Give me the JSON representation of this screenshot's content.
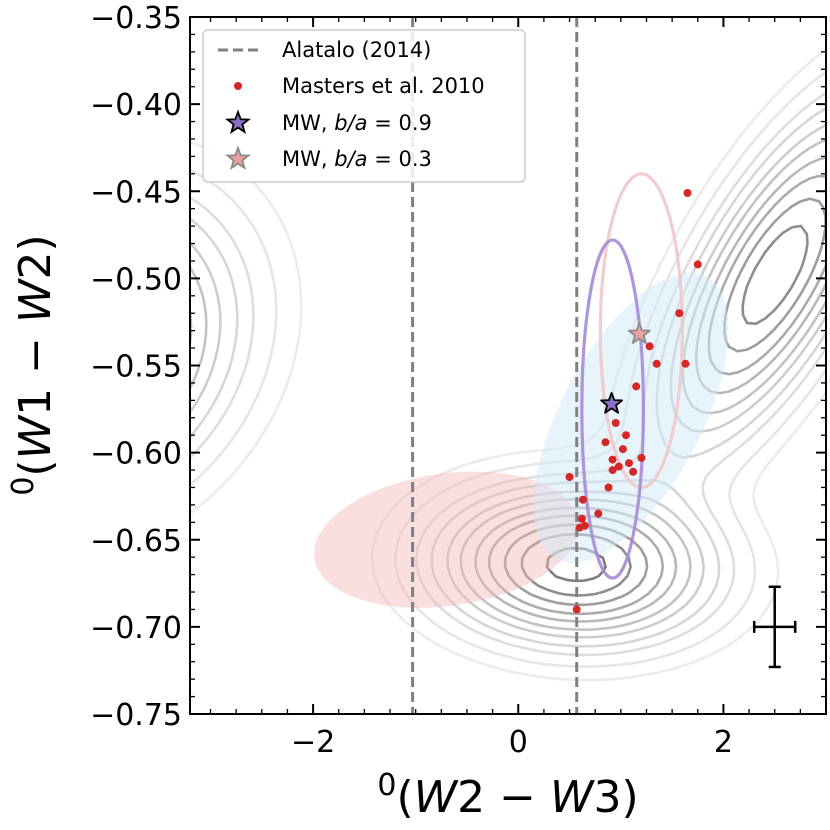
{
  "chart_data": {
    "type": "scatter",
    "title": "",
    "xlabel": "0(W2 − W3)",
    "xlabel_parts": {
      "sup": "0",
      "open": "(",
      "a": "W",
      "a_n": "2",
      "op": " − ",
      "b": "W",
      "b_n": "3",
      "close": ")"
    },
    "ylabel": "0(W1 − W2)",
    "ylabel_parts": {
      "sup": "0",
      "open": "(",
      "a": "W",
      "a_n": "1",
      "op": " − ",
      "b": "W",
      "b_n": "2",
      "close": ")"
    },
    "xlim": [
      -3.2,
      3.0
    ],
    "ylim": [
      -0.75,
      -0.35
    ],
    "xticks": [
      -2,
      0,
      2
    ],
    "xtick_labels": [
      "−2",
      "0",
      "2"
    ],
    "yticks": [
      -0.35,
      -0.4,
      -0.45,
      -0.5,
      -0.55,
      -0.6,
      -0.65,
      -0.7,
      -0.75
    ],
    "ytick_labels": [
      "−0.35",
      "−0.40",
      "−0.45",
      "−0.50",
      "−0.55",
      "−0.60",
      "−0.65",
      "−0.70",
      "−0.75"
    ],
    "vlines": [
      {
        "name": "Alatalo (2014)",
        "x": -1.03,
        "color": "#808080"
      },
      {
        "name": "Alatalo (2014)",
        "x": 0.57,
        "color": "#808080"
      }
    ],
    "legend": {
      "position": "top-left",
      "entries": [
        {
          "label": "Alatalo (2014)",
          "kind": "dashed-line",
          "color": "#808080"
        },
        {
          "label": "Masters et al. 2010",
          "kind": "dot",
          "color": "#d62728"
        },
        {
          "label_text": "MW, ",
          "label_var": "b/a",
          "label_value": " = 0.9",
          "kind": "star",
          "color": "#8a6fc4"
        },
        {
          "label_text": "MW, ",
          "label_var": "b/a",
          "label_value": " = 0.3",
          "kind": "star",
          "color": "#e8a0a0"
        }
      ]
    },
    "series": [
      {
        "name": "Masters et al. 2010",
        "color": "#d62728",
        "points": [
          [
            1.65,
            -0.451
          ],
          [
            1.75,
            -0.492
          ],
          [
            1.57,
            -0.52
          ],
          [
            1.28,
            -0.539
          ],
          [
            1.35,
            -0.549
          ],
          [
            1.63,
            -0.549
          ],
          [
            1.15,
            -0.562
          ],
          [
            0.95,
            -0.583
          ],
          [
            1.05,
            -0.59
          ],
          [
            0.85,
            -0.594
          ],
          [
            1.02,
            -0.598
          ],
          [
            1.2,
            -0.603
          ],
          [
            0.92,
            -0.604
          ],
          [
            1.08,
            -0.606
          ],
          [
            0.98,
            -0.608
          ],
          [
            1.12,
            -0.611
          ],
          [
            0.92,
            -0.61
          ],
          [
            0.5,
            -0.614
          ],
          [
            0.88,
            -0.62
          ],
          [
            0.63,
            -0.627
          ],
          [
            0.78,
            -0.635
          ],
          [
            0.62,
            -0.638
          ],
          [
            0.6,
            -0.643
          ],
          [
            0.65,
            -0.642
          ],
          [
            0.57,
            -0.69
          ]
        ]
      },
      {
        "name": "MW, b/a = 0.9",
        "color": "#8a6fc4",
        "points": [
          [
            0.91,
            -0.572
          ]
        ]
      },
      {
        "name": "MW, b/a = 0.3",
        "color": "#e8a0a0",
        "points": [
          [
            1.18,
            -0.532
          ]
        ]
      }
    ],
    "error_bar": {
      "x": 2.5,
      "y": -0.7,
      "xerr": 0.2,
      "yerr": 0.023
    },
    "annotations": [
      {
        "kind": "filled-ellipse",
        "color": "#f5b8b8",
        "cx": -0.7,
        "cy": -0.65,
        "rx": 1.3,
        "ry": 0.038,
        "angle_deg": -8
      },
      {
        "kind": "filled-ellipse",
        "color": "#cfe9f8",
        "cx": 1.1,
        "cy": -0.58,
        "rx": 0.6,
        "ry": 0.1,
        "angle_deg": -45
      },
      {
        "kind": "ellipse-outline",
        "color": "#f0c8c8",
        "cx": 1.2,
        "cy": -0.53,
        "rx": 0.4,
        "ry": 0.09
      },
      {
        "kind": "ellipse-outline",
        "color": "#a58bd6",
        "cx": 0.92,
        "cy": -0.575,
        "rx": 0.3,
        "ry": 0.097
      }
    ]
  }
}
